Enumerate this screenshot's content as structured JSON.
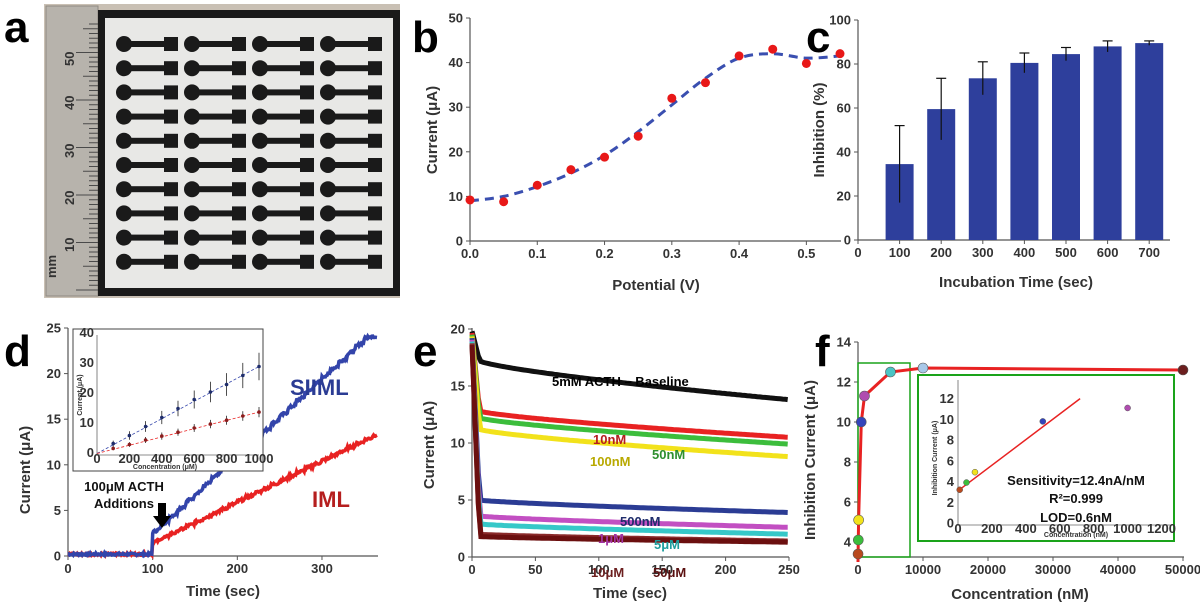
{
  "panels": {
    "a": {
      "label": "a",
      "ruler_ticks": [
        "50",
        "40",
        "30",
        "20",
        "10"
      ],
      "ruler_unit": "mm",
      "electrode_rows": 10,
      "electrode_cols": 4
    },
    "b": {
      "label": "b"
    },
    "c": {
      "label": "c"
    },
    "d": {
      "label": "d",
      "annotation": [
        "100μM ACTH",
        "Additions"
      ],
      "arrow_icon": "down-arrow"
    },
    "e": {
      "label": "e"
    },
    "f": {
      "label": "f",
      "inset_box_color": "#1aa31a"
    }
  },
  "colors": {
    "bar": "#2e3f9c",
    "dashed_fit": "#3a4fb0",
    "point_red": "#e81818",
    "siiml": "#3344aa",
    "iml": "#e82222",
    "fit_line": "#e82222"
  },
  "chart_data": [
    {
      "id": "b",
      "type": "scatter",
      "title": "",
      "xlabel": "Potential (V)",
      "ylabel": "Current (μA)",
      "xlim": [
        0,
        0.55
      ],
      "ylim": [
        0,
        50
      ],
      "xticks": [
        "0.0",
        "0.1",
        "0.2",
        "0.3",
        "0.4",
        "0.5"
      ],
      "yticks": [
        "0",
        "10",
        "20",
        "30",
        "40",
        "50"
      ],
      "grid": false,
      "series": [
        {
          "style": "points",
          "color": "#e81818",
          "x": [
            0,
            0.05,
            0.1,
            0.15,
            0.2,
            0.25,
            0.3,
            0.35,
            0.4,
            0.45,
            0.5,
            0.55
          ],
          "y": [
            9.2,
            8.8,
            12.5,
            16,
            18.8,
            23.5,
            32,
            35.5,
            41.5,
            43,
            39.8,
            42
          ]
        },
        {
          "style": "dashed-fit",
          "color": "#3a4fb0",
          "x": [
            0,
            0.05,
            0.1,
            0.15,
            0.2,
            0.25,
            0.3,
            0.35,
            0.4,
            0.45,
            0.5,
            0.55
          ],
          "y": [
            9.0,
            10.0,
            12.2,
            15.2,
            19.2,
            24.5,
            30.5,
            36.5,
            41.0,
            42.0,
            41.0,
            41.5
          ]
        }
      ]
    },
    {
      "id": "c",
      "type": "bar",
      "title": "",
      "xlabel": "Incubation Time (sec)",
      "ylabel": "Inhibition (%)",
      "categories": [
        "100",
        "200",
        "300",
        "400",
        "500",
        "600",
        "700"
      ],
      "values": [
        34.5,
        59.5,
        73.5,
        80.5,
        84.5,
        88,
        89.5
      ],
      "errors": [
        17.5,
        14,
        7.5,
        4.5,
        3,
        2.5,
        1
      ],
      "xticks": [
        "0",
        "100",
        "200",
        "300",
        "400",
        "500",
        "600",
        "700"
      ],
      "yticks": [
        "0",
        "20",
        "40",
        "60",
        "80",
        "100"
      ],
      "xlim": [
        0,
        750
      ],
      "ylim": [
        0,
        100
      ],
      "grid": false
    },
    {
      "id": "d",
      "type": "line",
      "title": "",
      "xlabel": "Time (sec)",
      "ylabel": "Current (μA)",
      "xlim": [
        0,
        365
      ],
      "ylim": [
        0,
        25
      ],
      "xticks": [
        "0",
        "100",
        "200",
        "300"
      ],
      "yticks": [
        "0",
        "5",
        "10",
        "15",
        "20",
        "25"
      ],
      "series": [
        {
          "name": "SIIML",
          "color": "#3344aa",
          "addition_start": 100,
          "addition_interval": 10,
          "step_size": 0.85,
          "baseline": 0.2,
          "first_step": 2.6,
          "plateau": 24.1
        },
        {
          "name": "IML",
          "color": "#e82222",
          "addition_start": 100,
          "addition_interval": 10,
          "step_size": 0.45,
          "baseline": 0.2,
          "first_step": 1.5,
          "plateau": 13.3
        }
      ],
      "inset": {
        "xlabel": "Concentration (μM)",
        "ylabel": "Current (μA)",
        "xlim": [
          0,
          1000
        ],
        "ylim": [
          0,
          40
        ],
        "xticks": [
          "0",
          "200",
          "400",
          "600",
          "800",
          "1000"
        ],
        "yticks": [
          "0",
          "10",
          "20",
          "30",
          "40"
        ],
        "x": [
          100,
          200,
          300,
          400,
          500,
          600,
          700,
          800,
          900,
          1000
        ],
        "series": [
          {
            "color": "#1f2d6b",
            "y": [
              3.8,
              6.5,
              9.5,
              12.5,
              15.5,
              18.5,
              21,
              23.5,
              26.5,
              29.5
            ],
            "err": [
              1,
              1.4,
              1.8,
              2.2,
              2.6,
              3,
              3.4,
              3.8,
              4.2,
              4.6
            ]
          },
          {
            "color": "#8a1d1d",
            "y": [
              2.2,
              3.5,
              5,
              6.3,
              7.6,
              9,
              10.3,
              11.6,
              13,
              14.3
            ],
            "err": [
              0.6,
              0.8,
              1,
              1.2,
              1.2,
              1.3,
              1.4,
              1.5,
              1.6,
              1.7
            ]
          }
        ]
      }
    },
    {
      "id": "e",
      "type": "line",
      "title": "",
      "xlabel": "Time (sec)",
      "ylabel": "Current (μA)",
      "xlim": [
        0,
        250
      ],
      "ylim": [
        0,
        20
      ],
      "xticks": [
        "0",
        "50",
        "100",
        "150",
        "200",
        "250"
      ],
      "yticks": [
        "0",
        "5",
        "10",
        "15",
        "20"
      ],
      "series": [
        {
          "name": "5mM ACTH – Baseline",
          "color": "#111111",
          "end": 13.8,
          "plateau0": 17.2
        },
        {
          "name": "10nM",
          "color": "#e82222",
          "end": 10.5,
          "plateau0": 12.8
        },
        {
          "name": "50nM",
          "color": "#3cbd3c",
          "end": 9.9,
          "plateau0": 12.2
        },
        {
          "name": "100nM",
          "color": "#f2e21b",
          "end": 8.8,
          "plateau0": 11.2
        },
        {
          "name": "500nM",
          "color": "#2b3c94",
          "end": 3.9,
          "plateau0": 5.0
        },
        {
          "name": "1μM",
          "color": "#c24fc2",
          "end": 2.6,
          "plateau0": 3.6
        },
        {
          "name": "5μM",
          "color": "#36c8c8",
          "end": 2.0,
          "plateau0": 2.9
        },
        {
          "name": "10μM",
          "color": "#8a2a2a",
          "end": 1.4,
          "plateau0": 2.0
        },
        {
          "name": "50μM",
          "color": "#6b0f0f",
          "end": 1.3,
          "plateau0": 1.8
        }
      ]
    },
    {
      "id": "f",
      "type": "scatter",
      "title": "",
      "xlabel": "Concentration (nM)",
      "ylabel": "Inhibition Current (μA)",
      "xlim": [
        0,
        50000
      ],
      "ylim": [
        2,
        14
      ],
      "xticks": [
        "0",
        "10000",
        "20000",
        "30000",
        "40000",
        "50000"
      ],
      "yticks": [
        "4",
        "6",
        "8",
        "10",
        "12",
        "14"
      ],
      "points": [
        {
          "x": 10,
          "y": 3.4,
          "color": "#b94a1e"
        },
        {
          "x": 50,
          "y": 4.1,
          "color": "#3cbd3c"
        },
        {
          "x": 100,
          "y": 5.1,
          "color": "#f2e21b"
        },
        {
          "x": 500,
          "y": 10.0,
          "color": "#3344bb"
        },
        {
          "x": 1000,
          "y": 11.3,
          "color": "#b04cb0"
        },
        {
          "x": 5000,
          "y": 12.5,
          "color": "#4bc4c4"
        },
        {
          "x": 10000,
          "y": 12.7,
          "color": "#a8c8e8"
        },
        {
          "x": 50000,
          "y": 12.6,
          "color": "#6b1e1e"
        }
      ],
      "inset": {
        "xlabel": "Concentration (nM)",
        "ylabel": "Inhibition Current (μA)",
        "xlim": [
          0,
          1250
        ],
        "ylim": [
          0,
          14
        ],
        "xticks": [
          "0",
          "200",
          "400",
          "600",
          "800",
          "1000",
          "1200"
        ],
        "yticks": [
          "0",
          "2",
          "4",
          "6",
          "8",
          "10",
          "12"
        ],
        "points": [
          {
            "x": 10,
            "y": 3.4,
            "color": "#b94a1e"
          },
          {
            "x": 50,
            "y": 4.1,
            "color": "#3cbd3c"
          },
          {
            "x": 100,
            "y": 5.1,
            "color": "#f2e21b"
          },
          {
            "x": 500,
            "y": 10.0,
            "color": "#3344bb"
          },
          {
            "x": 1000,
            "y": 11.3,
            "color": "#b04cb0"
          }
        ],
        "fit": {
          "x": [
            0,
            720
          ],
          "y": [
            3.3,
            12.2
          ]
        },
        "stats": [
          "Sensitivity=12.4nA/nM",
          "R²=0.999",
          "LOD=0.6nM"
        ]
      }
    }
  ]
}
